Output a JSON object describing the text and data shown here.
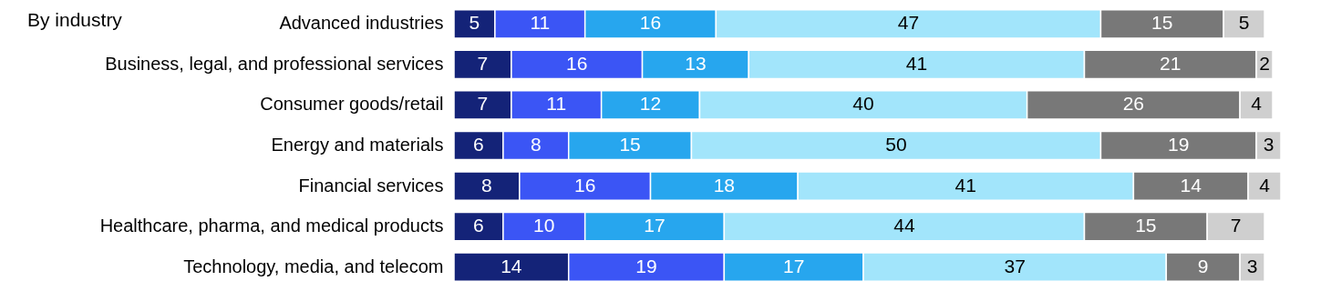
{
  "chart_data": {
    "type": "bar",
    "orientation": "horizontal",
    "stacked": true,
    "title": "By industry",
    "data_labels": true,
    "tick_labels": "y",
    "xlim": [
      0,
      101
    ],
    "categories": [
      "Advanced industries",
      "Business, legal, and professional services",
      "Consumer goods/retail",
      "Energy and materials",
      "Financial services",
      "Healthcare, pharma, and medical products",
      "Technology, media, and telecom"
    ],
    "series": [
      {
        "color": "#142378",
        "values": [
          5,
          7,
          7,
          6,
          8,
          6,
          14
        ]
      },
      {
        "color": "#3b55f5",
        "values": [
          11,
          16,
          11,
          8,
          16,
          10,
          19
        ]
      },
      {
        "color": "#27a6ee",
        "values": [
          16,
          13,
          12,
          15,
          18,
          17,
          17
        ]
      },
      {
        "color": "#a2e5fb",
        "values": [
          47,
          41,
          40,
          50,
          41,
          44,
          37
        ]
      },
      {
        "color": "#787878",
        "values": [
          15,
          21,
          26,
          19,
          14,
          15,
          9
        ]
      },
      {
        "color": "#cfcfcf",
        "values": [
          5,
          2,
          4,
          3,
          4,
          7,
          3
        ]
      }
    ]
  }
}
